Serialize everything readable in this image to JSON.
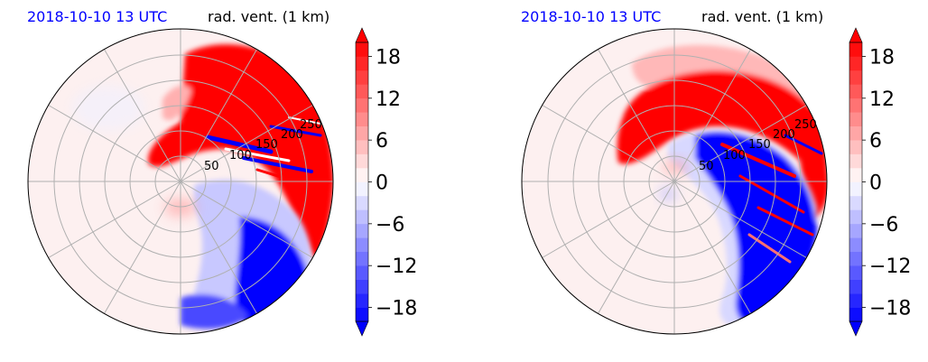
{
  "panels": [
    {
      "time_label": "2018-10-10 13 UTC",
      "title": "rad. vent. (1 km)"
    },
    {
      "time_label": "2018-10-10 13 UTC",
      "title": "rad. vent. (1 km)"
    }
  ],
  "colors": {
    "time_label": "#0000ff",
    "title": "#000000",
    "positive_max": "#ff0000",
    "negative_max": "#0000ff",
    "neutral": "#ffffff",
    "grid": "#b0b0b0"
  },
  "chart_data": [
    {
      "type": "heatmap",
      "projection": "polar",
      "title": "rad. vent. (1 km)",
      "subtitle": "2018-10-10 13 UTC",
      "range_rings": [
        50,
        100,
        150,
        200,
        250
      ],
      "range_ring_labels": [
        "50",
        "100",
        "150",
        "200",
        "250"
      ],
      "radial_spokes_deg": [
        0,
        30,
        60,
        90,
        120,
        150,
        180,
        210,
        240,
        270,
        300,
        330
      ],
      "grid": true,
      "colorbar": {
        "vmin": -20,
        "vmax": 20,
        "step": 2,
        "extend": "both",
        "colormap": "bwr",
        "ticks": [
          -18,
          -12,
          -6,
          0,
          6,
          12,
          18
        ],
        "tick_labels": [
          "−18",
          "−12",
          "−6",
          "0",
          "6",
          "12",
          "18"
        ]
      }
    },
    {
      "type": "heatmap",
      "projection": "polar",
      "title": "rad. vent. (1 km)",
      "subtitle": "2018-10-10 13 UTC",
      "range_rings": [
        50,
        100,
        150,
        200,
        250
      ],
      "range_ring_labels": [
        "50",
        "100",
        "150",
        "200",
        "250"
      ],
      "radial_spokes_deg": [
        0,
        30,
        60,
        90,
        120,
        150,
        180,
        210,
        240,
        270,
        300,
        330
      ],
      "grid": true,
      "colorbar": {
        "vmin": -20,
        "vmax": 20,
        "step": 2,
        "extend": "both",
        "colormap": "bwr",
        "ticks": [
          -18,
          -12,
          -6,
          0,
          6,
          12,
          18
        ],
        "tick_labels": [
          "−18",
          "−12",
          "−6",
          "0",
          "6",
          "12",
          "18"
        ]
      }
    }
  ]
}
